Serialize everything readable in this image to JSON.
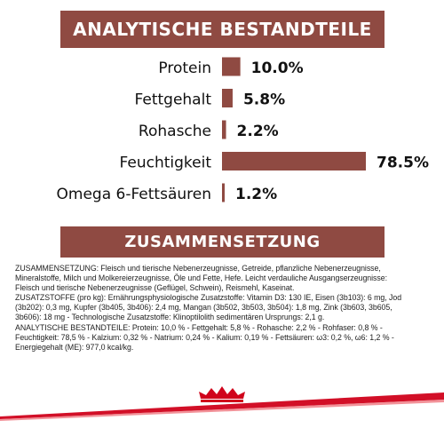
{
  "banners": {
    "analysis": "ANALYTISCHE BESTANDTEILE",
    "composition": "ZUSAMMENSETZUNG"
  },
  "chart_data": {
    "type": "bar",
    "orientation": "horizontal",
    "categories": [
      "Protein",
      "Fettgehalt",
      "Rohasche",
      "Feuchtigkeit",
      "Omega 6-Fettsäuren"
    ],
    "values": [
      10.0,
      5.8,
      2.2,
      78.5,
      1.2
    ],
    "value_labels": [
      "10.0%",
      "5.8%",
      "2.2%",
      "78.5%",
      "1.2%"
    ],
    "unit": "%",
    "xlim": [
      0,
      78.5
    ],
    "grid": false,
    "legend": "none",
    "title": "",
    "xlabel": "",
    "ylabel": ""
  },
  "composition_lines": [
    "ZUSAMMENSETZUNG: Fleisch und tierische Nebenerzeugnisse, Getreide, pflanzliche Nebenerzeugnisse,",
    "Mineralstoffe, Milch und Molkereierzeugnisse, Öle und Fette, Hefe. Leicht verdauliche Ausgangserzeugnisse:",
    "Fleisch und tierische Nebenerzeugnisse (Geflügel, Schwein), Reismehl, Kaseinat.",
    "ZUSATZSTOFFE (pro kg): Ernährungsphysiologische Zusatzstoffe: Vitamin D3: 130 IE, Eisen (3b103): 6 mg, Jod",
    "(3b202): 0,3 mg, Kupfer (3b405, 3b406): 2,4 mg, Mangan (3b502, 3b503, 3b504): 1,8 mg, Zink (3b603, 3b605,",
    "3b606): 18 mg - Technologische Zusatzstoffe: Klinoptilolith sedimentären Ursprungs: 2,1 g.",
    "ANALYTISCHE BESTANDTEILE: Protein: 10,0 % - Fettgehalt: 5,8 % - Rohasche: 2,2 % - Rohfaser: 0,8 % -",
    "Feuchtigkeit: 78,5 % - Kalzium: 0,32 % - Natrium: 0,24 % - Kalium: 0,19 % - Fettsäuren: ω3: 0,2 %, ω6: 1,2 % -",
    "Energiegehalt (ME): 977,0 kcal/kg."
  ],
  "colors": {
    "bar": "#8f4a42",
    "banner": "#8f4a42",
    "brand_red": "#d0021b",
    "text": "#222222"
  }
}
